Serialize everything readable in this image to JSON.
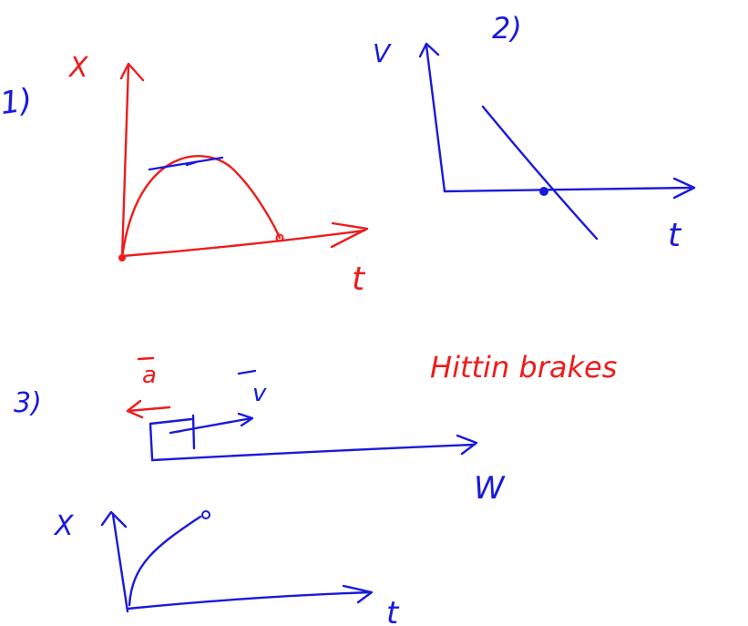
{
  "colors": {
    "red_ink": "#ee1c1c",
    "blue_ink": "#1a1adb",
    "background": "#ffffff"
  },
  "panel1": {
    "number": "1)",
    "y_axis": "X",
    "x_axis": "t"
  },
  "panel2": {
    "number": "2)",
    "y_axis": "V",
    "x_axis": "t"
  },
  "panel3": {
    "number": "3)",
    "accel_label": "a",
    "vel_label": "v",
    "road_label": "W",
    "note": "Hittin brakes",
    "plot_y_axis": "X",
    "plot_x_axis": "t"
  }
}
